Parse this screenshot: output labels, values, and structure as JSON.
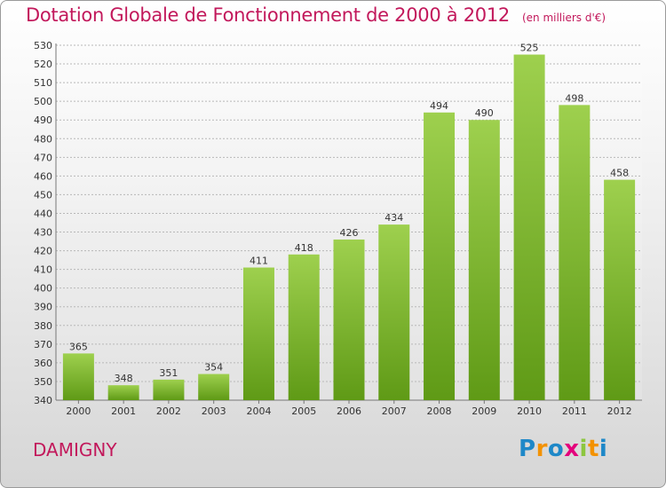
{
  "header": {
    "title": "Dotation Globale de Fonctionnement de 2000 à 2012",
    "unit": "(en milliers d'€)"
  },
  "footer": {
    "city": "DAMIGNY",
    "logo": "Proxiti"
  },
  "colors": {
    "accent": "#c2185b",
    "bar_top": "#9ed04e",
    "bar_bottom": "#5f9a16"
  },
  "chart_data": {
    "type": "bar",
    "title": "Dotation Globale de Fonctionnement de 2000 à 2012",
    "subtitle": "(en milliers d'€)",
    "categories": [
      "2000",
      "2001",
      "2002",
      "2003",
      "2004",
      "2005",
      "2006",
      "2007",
      "2008",
      "2009",
      "2010",
      "2011",
      "2012"
    ],
    "values": [
      365,
      348,
      351,
      354,
      411,
      418,
      426,
      434,
      494,
      490,
      525,
      498,
      458
    ],
    "ylim": [
      340,
      530
    ],
    "yticks": [
      340,
      350,
      360,
      370,
      380,
      390,
      400,
      410,
      420,
      430,
      440,
      450,
      460,
      470,
      480,
      490,
      500,
      510,
      520,
      530
    ],
    "grid": true,
    "xlabel": "",
    "ylabel": ""
  }
}
